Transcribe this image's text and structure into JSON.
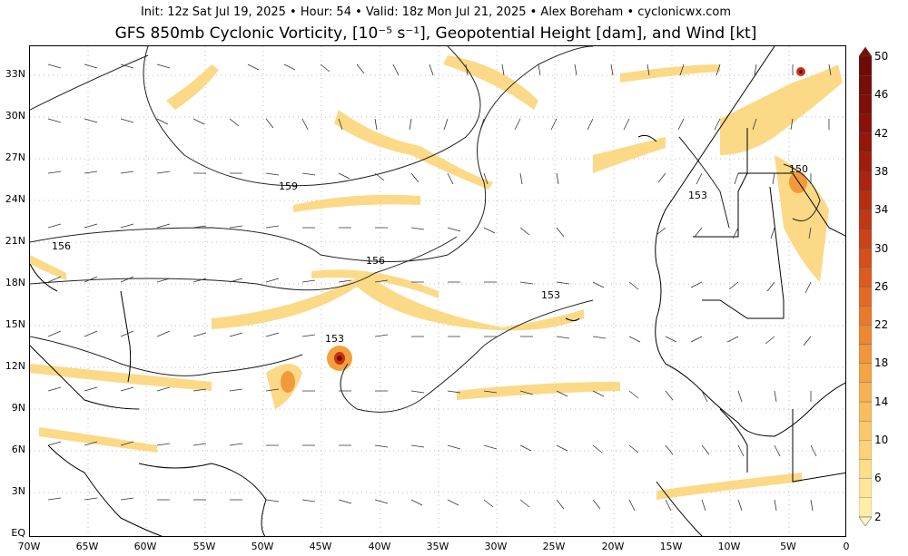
{
  "header": {
    "line1": "Init: 12z Sat Jul 19, 2025 • Hour: 54 • Valid: 18z Mon Jul 21, 2025 • Alex Boreham • cyclonicwx.com",
    "line2": "GFS 850mb Cyclonic Vorticity, [10⁻⁵ s⁻¹], Geopotential Height [dam], and Wind [kt]"
  },
  "map": {
    "lat_labels": [
      "33N",
      "30N",
      "27N",
      "24N",
      "21N",
      "18N",
      "15N",
      "12N",
      "9N",
      "6N",
      "3N",
      "EQ"
    ],
    "lon_labels": [
      "70W",
      "65W",
      "60W",
      "55W",
      "50W",
      "45W",
      "40W",
      "35W",
      "30W",
      "25W",
      "20W",
      "15W",
      "10W",
      "5W",
      "0"
    ],
    "height_labels": [
      "159",
      "156",
      "156",
      "153",
      "153",
      "153",
      "150"
    ],
    "colorbar": {
      "ticks": [
        "50",
        "46",
        "42",
        "38",
        "34",
        "30",
        "26",
        "22",
        "18",
        "14",
        "10",
        "6",
        "2"
      ],
      "colors": [
        "#ffeea8",
        "#fde08a",
        "#fbcd6a",
        "#f8b64e",
        "#f59b3a",
        "#ef7e2c",
        "#e56021",
        "#d6461a",
        "#c33013",
        "#a81e0e",
        "#8c1209"
      ]
    }
  }
}
